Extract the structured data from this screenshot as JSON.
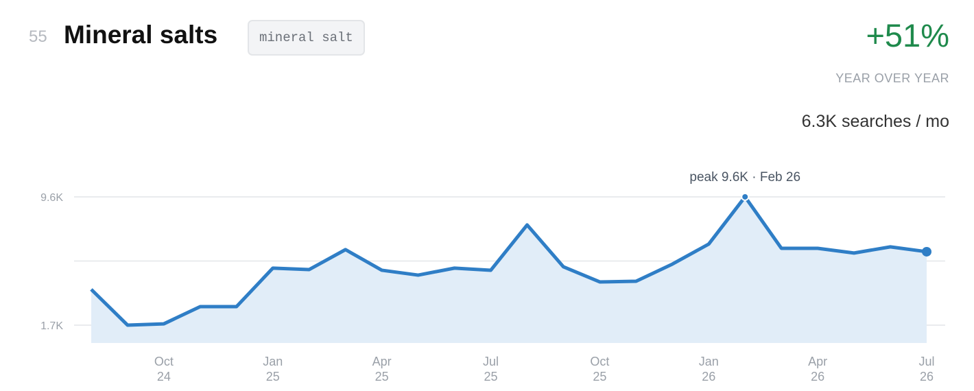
{
  "header": {
    "rank": "55",
    "title": "Mineral salts",
    "tag": "mineral salt",
    "growth": "+51%",
    "growth_label": "YEAR OVER YEAR",
    "volume": "6.3K searches / mo"
  },
  "chart_data": {
    "type": "area",
    "annotation": "peak 9.6K · Feb 26",
    "categories": [
      null,
      null,
      {
        "month": "Oct",
        "year": "24"
      },
      null,
      null,
      {
        "month": "Jan",
        "year": "25"
      },
      null,
      null,
      {
        "month": "Apr",
        "year": "25"
      },
      null,
      null,
      {
        "month": "Jul",
        "year": "25"
      },
      null,
      null,
      {
        "month": "Oct",
        "year": "25"
      },
      null,
      null,
      {
        "month": "Jan",
        "year": "26"
      },
      null,
      null,
      {
        "month": "Apr",
        "year": "26"
      },
      null,
      null,
      {
        "month": "Jul",
        "year": "26"
      }
    ],
    "values": [
      3900,
      1700,
      1780,
      2840,
      2840,
      5210,
      5120,
      6350,
      5080,
      4780,
      5210,
      5080,
      7870,
      5290,
      4360,
      4400,
      5460,
      6690,
      9600,
      6430,
      6430,
      6140,
      6520,
      6220
    ],
    "color": "#2f7ec6",
    "fill": "#e1edf8",
    "peak_index": 18,
    "ylim": [
      600,
      10400
    ],
    "yticks": [
      {
        "value": 1700,
        "label": "1.7K"
      },
      {
        "value": 9600,
        "label": "9.6K"
      }
    ],
    "ygrid": [
      1700,
      5650,
      9600
    ],
    "grid": true
  }
}
